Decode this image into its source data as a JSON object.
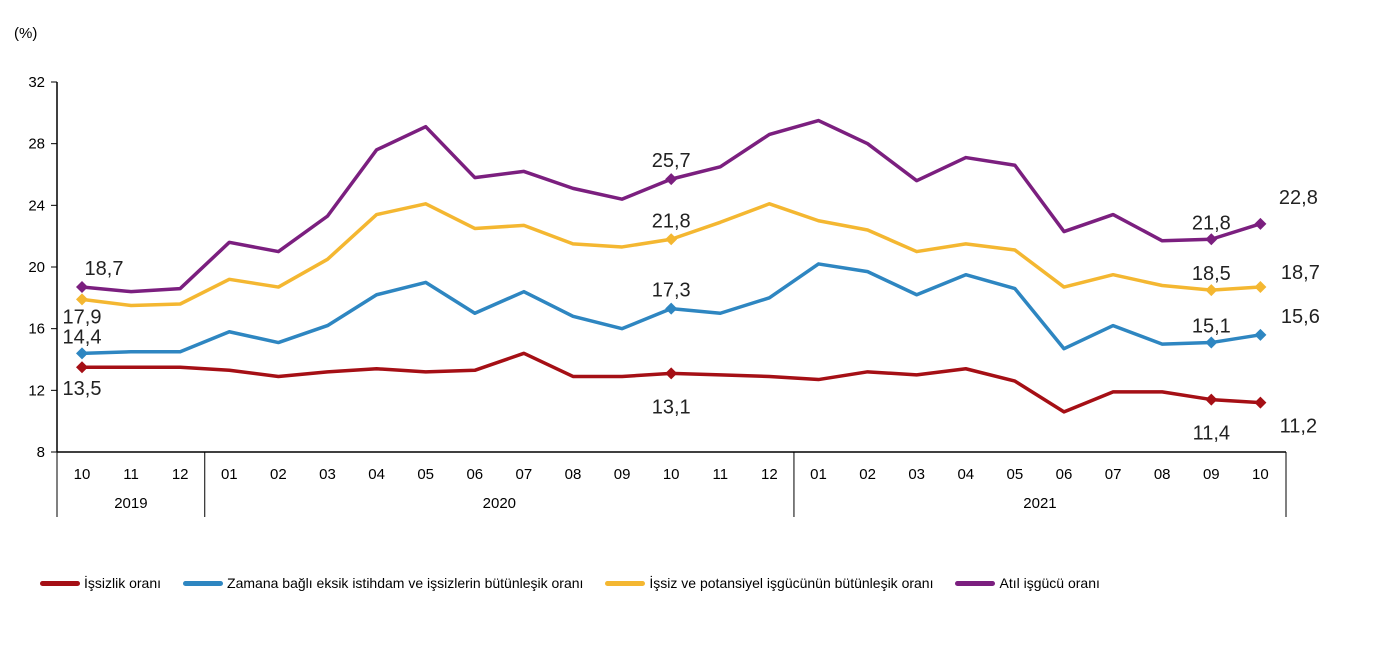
{
  "chart_data": {
    "type": "line",
    "unit_label": "(%)",
    "ylim": [
      8,
      32
    ],
    "yticks": [
      8,
      12,
      16,
      20,
      24,
      28,
      32
    ],
    "grid": false,
    "legend_position": "bottom",
    "categories": [
      "10",
      "11",
      "12",
      "01",
      "02",
      "03",
      "04",
      "05",
      "06",
      "07",
      "08",
      "09",
      "10",
      "11",
      "12",
      "01",
      "02",
      "03",
      "04",
      "05",
      "06",
      "07",
      "08",
      "09",
      "10"
    ],
    "years": [
      {
        "label": "2019",
        "span": 3
      },
      {
        "label": "2020",
        "span": 12
      },
      {
        "label": "2021",
        "span": 10
      }
    ],
    "series": [
      {
        "name": "İşsizlik oranı",
        "color": "#A50F15",
        "values": [
          13.5,
          13.5,
          13.5,
          13.3,
          12.9,
          13.2,
          13.4,
          13.2,
          13.3,
          14.4,
          12.9,
          12.9,
          13.1,
          13.0,
          12.9,
          12.7,
          13.2,
          13.0,
          13.4,
          12.6,
          10.6,
          11.9,
          11.9,
          11.4,
          11.2
        ],
        "labels": {
          "0": "13,5",
          "12": "13,1",
          "23": "11,4",
          "24": "11,2"
        }
      },
      {
        "name": "Zamana bağlı eksik istihdam ve işsizlerin bütünleşik oranı",
        "color": "#2E86C1",
        "values": [
          14.4,
          14.5,
          14.5,
          15.8,
          15.1,
          16.2,
          18.2,
          19.0,
          17.0,
          18.4,
          16.8,
          16.0,
          17.3,
          17.0,
          18.0,
          20.2,
          19.7,
          18.2,
          19.5,
          18.6,
          14.7,
          16.2,
          15.0,
          15.1,
          15.6
        ],
        "labels": {
          "0": "14,4",
          "12": "17,3",
          "23": "15,1",
          "24": "15,6"
        }
      },
      {
        "name": "İşsiz ve potansiyel işgücünün bütünleşik oranı",
        "color": "#F4B731",
        "values": [
          17.9,
          17.5,
          17.6,
          19.2,
          18.7,
          20.5,
          23.4,
          24.1,
          22.5,
          22.7,
          21.5,
          21.3,
          21.8,
          22.9,
          24.1,
          23.0,
          22.4,
          21.0,
          21.5,
          21.1,
          18.7,
          19.5,
          18.8,
          18.5,
          18.7
        ],
        "labels": {
          "0": "17,9",
          "12": "21,8",
          "23": "18,5",
          "24": "18,7"
        }
      },
      {
        "name": "Atıl işgücü oranı",
        "color": "#7B1F7F",
        "values": [
          18.7,
          18.4,
          18.6,
          21.6,
          21.0,
          23.3,
          27.6,
          29.1,
          25.8,
          26.2,
          25.1,
          24.4,
          25.7,
          26.5,
          28.6,
          29.5,
          28.0,
          25.6,
          27.1,
          26.6,
          22.3,
          23.4,
          21.7,
          21.8,
          22.8
        ],
        "labels": {
          "0": "18,7",
          "12": "25,7",
          "23": "21,8",
          "24": "22,8"
        }
      }
    ]
  }
}
